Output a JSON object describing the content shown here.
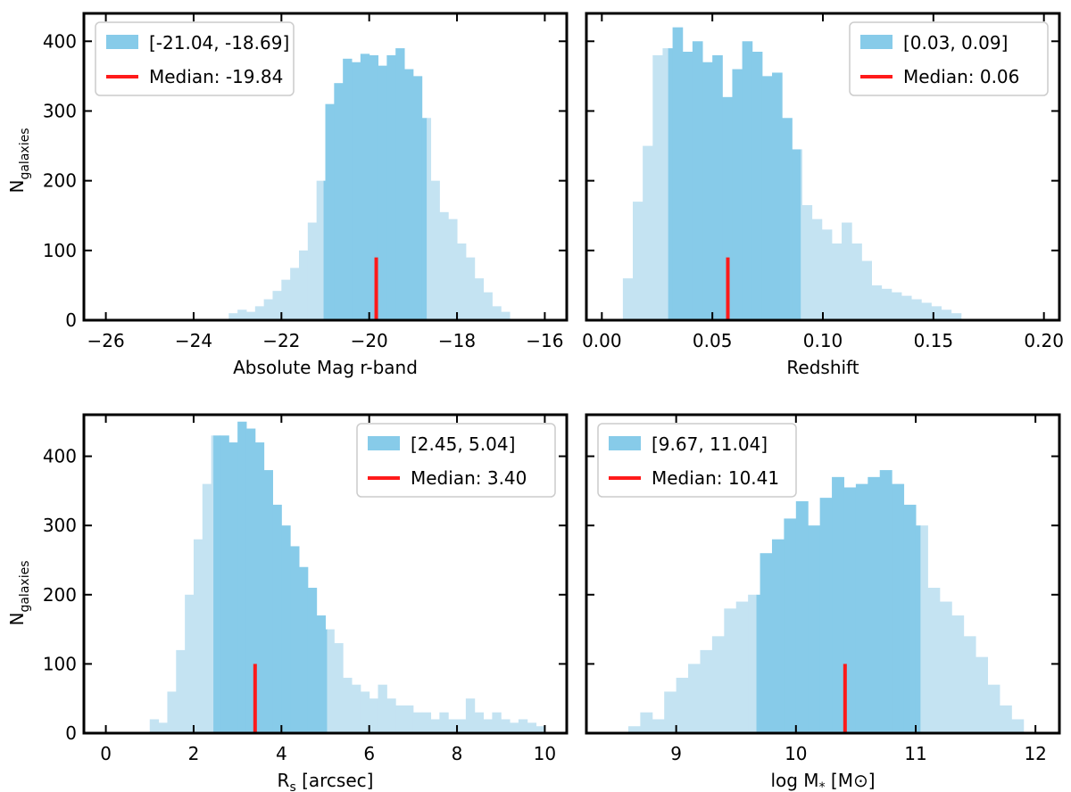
{
  "figure": {
    "ylabel_main": "N",
    "ylabel_sub": "galaxies"
  },
  "colors": {
    "bar_light": "#c4e3f2",
    "bar_dark": "#87cbe9",
    "median": "#ff1a1a",
    "axis": "#000000"
  },
  "chart_data": [
    {
      "type": "bar",
      "title": "",
      "xlabel": "Absolute Mag r-band",
      "xlim": [
        -26.5,
        -15.5
      ],
      "ylim": [
        0,
        440
      ],
      "xticks": [
        -26,
        -24,
        -22,
        -20,
        -18,
        -16
      ],
      "xtick_labels": [
        "−26",
        "−24",
        "−22",
        "−20",
        "−18",
        "−16"
      ],
      "yticks": [
        0,
        100,
        200,
        300,
        400
      ],
      "ytick_labels": [
        "0",
        "100",
        "200",
        "300",
        "400"
      ],
      "bin_edges": [
        -23.2,
        -23.0,
        -22.8,
        -22.6,
        -22.4,
        -22.2,
        -22.0,
        -21.8,
        -21.6,
        -21.4,
        -21.2,
        -21.0,
        -20.8,
        -20.6,
        -20.4,
        -20.2,
        -20.0,
        -19.8,
        -19.6,
        -19.4,
        -19.2,
        -19.0,
        -18.8,
        -18.6,
        -18.4,
        -18.2,
        -18.0,
        -17.8,
        -17.6,
        -17.4,
        -17.2,
        -17.0,
        -16.8
      ],
      "counts": [
        10,
        15,
        12,
        20,
        30,
        42,
        58,
        75,
        100,
        140,
        200,
        310,
        340,
        375,
        370,
        382,
        380,
        365,
        380,
        390,
        360,
        350,
        290,
        200,
        155,
        145,
        110,
        90,
        60,
        40,
        20,
        12
      ],
      "highlight_range": [
        -21.04,
        -18.69
      ],
      "median": -19.84,
      "median_line_height": 90,
      "legend": {
        "position": "top-left",
        "range_label": "[-21.04, -18.69]",
        "median_label": "Median: -19.84"
      }
    },
    {
      "type": "bar",
      "title": "",
      "xlabel": "Redshift",
      "xlim": [
        -0.007,
        0.207
      ],
      "ylim": [
        0,
        440
      ],
      "xticks": [
        0.0,
        0.05,
        0.1,
        0.15,
        0.2
      ],
      "xtick_labels": [
        "0.00",
        "0.05",
        "0.10",
        "0.15",
        "0.20"
      ],
      "yticks": [
        0,
        100,
        200,
        300,
        400
      ],
      "ytick_labels": [],
      "bin_edges": [
        0.0095,
        0.014,
        0.0185,
        0.023,
        0.0275,
        0.032,
        0.0365,
        0.041,
        0.0455,
        0.05,
        0.0545,
        0.059,
        0.0635,
        0.068,
        0.0725,
        0.077,
        0.0815,
        0.086,
        0.0905,
        0.095,
        0.0995,
        0.104,
        0.1085,
        0.113,
        0.1175,
        0.122,
        0.1265,
        0.131,
        0.1355,
        0.14,
        0.1445,
        0.149,
        0.1535,
        0.158,
        0.1625
      ],
      "counts": [
        60,
        170,
        250,
        380,
        390,
        420,
        385,
        400,
        370,
        380,
        320,
        360,
        400,
        385,
        350,
        355,
        290,
        245,
        165,
        145,
        130,
        110,
        140,
        110,
        85,
        50,
        45,
        40,
        35,
        30,
        25,
        20,
        15,
        10
      ],
      "highlight_range": [
        0.03,
        0.09
      ],
      "median": 0.057,
      "median_line_height": 90,
      "legend": {
        "position": "top-right",
        "range_label": "[0.03, 0.09]",
        "median_label": "Median: 0.06"
      }
    },
    {
      "type": "bar",
      "title": "",
      "xlabel": "R",
      "xlabel_sub": "s",
      "xlabel_suffix": " [arcsec]",
      "xlim": [
        -0.5,
        10.5
      ],
      "ylim": [
        0,
        460
      ],
      "xticks": [
        0,
        2,
        4,
        6,
        8,
        10
      ],
      "xtick_labels": [
        "0",
        "2",
        "4",
        "6",
        "8",
        "10"
      ],
      "yticks": [
        0,
        100,
        200,
        300,
        400
      ],
      "ytick_labels": [
        "0",
        "100",
        "200",
        "300",
        "400"
      ],
      "bin_edges": [
        1.0,
        1.2,
        1.4,
        1.6,
        1.8,
        2.0,
        2.2,
        2.4,
        2.6,
        2.8,
        3.0,
        3.2,
        3.4,
        3.6,
        3.8,
        4.0,
        4.2,
        4.4,
        4.6,
        4.8,
        5.0,
        5.2,
        5.4,
        5.6,
        5.8,
        6.0,
        6.2,
        6.4,
        6.6,
        6.8,
        7.0,
        7.2,
        7.4,
        7.6,
        7.8,
        8.0,
        8.2,
        8.4,
        8.6,
        8.8,
        9.0,
        9.2,
        9.4,
        9.6,
        9.8,
        10.0
      ],
      "counts": [
        20,
        15,
        60,
        120,
        200,
        280,
        360,
        430,
        430,
        420,
        450,
        440,
        420,
        380,
        330,
        300,
        270,
        240,
        210,
        170,
        150,
        130,
        80,
        70,
        60,
        50,
        70,
        50,
        40,
        40,
        30,
        30,
        20,
        30,
        20,
        20,
        50,
        30,
        20,
        30,
        20,
        15,
        20,
        15,
        10
      ],
      "highlight_range": [
        2.45,
        5.04
      ],
      "median": 3.4,
      "median_line_height": 100,
      "legend": {
        "position": "top-right",
        "range_label": "[2.45, 5.04]",
        "median_label": "Median: 3.40"
      }
    },
    {
      "type": "bar",
      "title": "",
      "xlabel": "log M",
      "xlabel_sub": "*",
      "xlabel_suffix": " [M⊙]",
      "xlim": [
        8.25,
        12.2
      ],
      "ylim": [
        0,
        460
      ],
      "xticks": [
        9,
        10,
        11,
        12
      ],
      "xtick_labels": [
        "9",
        "10",
        "11",
        "12"
      ],
      "yticks": [
        0,
        100,
        200,
        300,
        400
      ],
      "ytick_labels": [],
      "bin_edges": [
        8.6,
        8.7,
        8.8,
        8.9,
        9.0,
        9.1,
        9.2,
        9.3,
        9.4,
        9.5,
        9.6,
        9.7,
        9.8,
        9.9,
        10.0,
        10.1,
        10.2,
        10.3,
        10.4,
        10.5,
        10.6,
        10.7,
        10.8,
        10.9,
        11.0,
        11.1,
        11.2,
        11.3,
        11.4,
        11.5,
        11.6,
        11.7,
        11.8,
        11.9
      ],
      "counts": [
        10,
        30,
        20,
        60,
        80,
        100,
        120,
        140,
        180,
        190,
        200,
        260,
        280,
        310,
        335,
        300,
        340,
        370,
        355,
        360,
        370,
        380,
        360,
        330,
        300,
        210,
        190,
        170,
        140,
        110,
        70,
        40,
        20
      ],
      "highlight_range": [
        9.67,
        11.04
      ],
      "median": 10.41,
      "median_line_height": 100,
      "legend": {
        "position": "top-left",
        "range_label": "[9.67, 11.04]",
        "median_label": "Median: 10.41"
      }
    }
  ]
}
